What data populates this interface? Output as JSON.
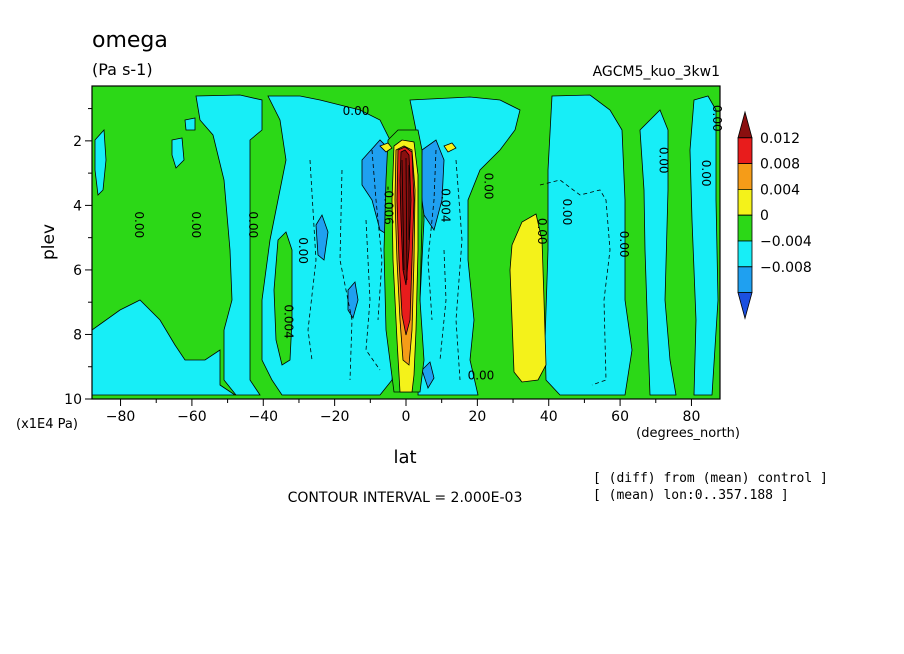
{
  "chart_data": {
    "type": "heatmap",
    "title": "omega",
    "units": "(Pa s-1)",
    "experiment": "AGCM5_kuo_3kw1",
    "xlabel": "lat",
    "xunits": "(degrees_north)",
    "ylabel": "plev",
    "yunits": "(x1E4 Pa)",
    "xlim": [
      -88,
      88
    ],
    "ylim": [
      10,
      0.3
    ],
    "x_ticks": [
      -80,
      -60,
      -40,
      -20,
      0,
      20,
      40,
      60,
      80
    ],
    "y_ticks": [
      2,
      4,
      6,
      8,
      10
    ],
    "contour_interval_text": "CONTOUR INTERVAL = 2.000E-03",
    "notes": [
      "[ (diff) from (mean) control ]",
      "[ (mean) lon:0..357.188 ]"
    ],
    "colorbar": {
      "labels": [
        "0.012",
        "0.008",
        "0.004",
        "0",
        "−0.004",
        "−0.008"
      ],
      "colors": [
        "#8a0f0f",
        "#e81c1c",
        "#f59c18",
        "#f4f21a",
        "#2cd817",
        "#17eef7",
        "#1fa0f0",
        "#1b50e0"
      ]
    },
    "contour_labels": [
      {
        "text": "0.00",
        "lat": -76,
        "plev": 4.6,
        "rot": 90
      },
      {
        "text": "0.00",
        "lat": -60,
        "plev": 4.6,
        "rot": 90
      },
      {
        "text": "0.00",
        "lat": -44,
        "plev": 4.6,
        "rot": 90
      },
      {
        "text": "0.00",
        "lat": -30,
        "plev": 5.4,
        "rot": 90
      },
      {
        "text": "0.004",
        "lat": -34,
        "plev": 7.6,
        "rot": 90
      },
      {
        "text": "0.00",
        "lat": -14,
        "plev": 1.2,
        "rot": 0
      },
      {
        "text": "-0.006",
        "lat": -6,
        "plev": 4.0,
        "rot": 90
      },
      {
        "text": "0.004",
        "lat": 10,
        "plev": 4.0,
        "rot": 90
      },
      {
        "text": "0.00",
        "lat": 22,
        "plev": 3.4,
        "rot": 90
      },
      {
        "text": "0.00",
        "lat": 37,
        "plev": 4.8,
        "rot": 90
      },
      {
        "text": "0.00",
        "lat": 44,
        "plev": 4.2,
        "rot": 90
      },
      {
        "text": "0.00",
        "lat": 60,
        "plev": 5.2,
        "rot": 90
      },
      {
        "text": "0.00",
        "lat": 71,
        "plev": 2.6,
        "rot": 90
      },
      {
        "text": "0.00",
        "lat": 83,
        "plev": 3.0,
        "rot": 90
      },
      {
        "text": "0.00",
        "lat": 86,
        "plev": 1.3,
        "rot": 90
      },
      {
        "text": "0.00",
        "lat": 21,
        "plev": 9.4,
        "rot": 0
      }
    ]
  }
}
